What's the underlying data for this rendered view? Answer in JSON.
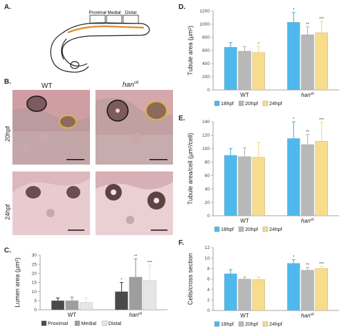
{
  "panels": {
    "A": {
      "letter": "A.",
      "segments": [
        "Proximal",
        "Medial",
        "Distal"
      ]
    },
    "B": {
      "letter": "B.",
      "col_wt": "WT",
      "col_han": "han",
      "col_han_sup": "s6",
      "row_20": "20hpf",
      "row_24": "24hpf"
    },
    "C": {
      "letter": "C."
    },
    "D": {
      "letter": "D."
    },
    "E": {
      "letter": "E."
    },
    "F": {
      "letter": "F."
    }
  },
  "chart_data": [
    {
      "id": "C",
      "type": "bar",
      "ylabel": "Lumen area (μm²)",
      "ylim": [
        0,
        30
      ],
      "yticks": [
        0,
        5,
        10,
        15,
        20,
        25,
        30
      ],
      "groups": [
        "WT",
        "han"
      ],
      "group_sup": [
        "",
        "s6"
      ],
      "legend_position": "bottom",
      "series": [
        {
          "name": "Proximal",
          "color": "#4a4a4a",
          "values": [
            5.0,
            10.0
          ],
          "errors": [
            1.5,
            5.0
          ],
          "marks": [
            "",
            "*"
          ]
        },
        {
          "name": "Medial",
          "color": "#9e9e9e",
          "values": [
            5.0,
            18.0
          ],
          "errors": [
            2.0,
            10.0
          ],
          "marks": [
            "",
            "**"
          ]
        },
        {
          "name": "Distal",
          "color": "#e6e6e6",
          "values": [
            4.0,
            16.0
          ],
          "errors": [
            2.5,
            8.5
          ],
          "marks": [
            "",
            "***"
          ]
        }
      ]
    },
    {
      "id": "D",
      "type": "bar",
      "ylabel": "Tubule area (μm²)",
      "ylim": [
        0,
        1200
      ],
      "yticks": [
        0,
        200,
        400,
        600,
        800,
        1000,
        1200
      ],
      "groups": [
        "WT",
        "han"
      ],
      "group_sup": [
        "",
        "s6"
      ],
      "legend_position": "bottom",
      "series": [
        {
          "name": "18hpf",
          "color": "#4fb8ec",
          "values": [
            650,
            1030
          ],
          "errors": [
            70,
            150
          ],
          "marks": [
            "",
            "*"
          ]
        },
        {
          "name": "20hpf",
          "color": "#b8b8b8",
          "values": [
            590,
            840
          ],
          "errors": [
            70,
            120
          ],
          "marks": [
            "",
            "**"
          ]
        },
        {
          "name": "24hpf",
          "color": "#f7dc8c",
          "values": [
            570,
            870
          ],
          "errors": [
            90,
            170
          ],
          "marks": [
            "*",
            "***"
          ]
        }
      ]
    },
    {
      "id": "E",
      "type": "bar",
      "ylabel": "Tubule area/cell (μm²/cell)",
      "ylim": [
        0,
        140
      ],
      "yticks": [
        0,
        20,
        40,
        60,
        80,
        100,
        120,
        140
      ],
      "groups": [
        "WT",
        "han"
      ],
      "group_sup": [
        "",
        "s6"
      ],
      "legend_position": "bottom",
      "series": [
        {
          "name": "18hpf",
          "color": "#4fb8ec",
          "values": [
            90,
            115
          ],
          "errors": [
            10,
            25
          ],
          "marks": [
            "",
            "*"
          ]
        },
        {
          "name": "20hpf",
          "color": "#b8b8b8",
          "values": [
            88,
            106
          ],
          "errors": [
            13,
            15
          ],
          "marks": [
            "",
            "**"
          ]
        },
        {
          "name": "24hpf",
          "color": "#f7dc8c",
          "values": [
            87,
            111
          ],
          "errors": [
            22,
            28
          ],
          "marks": [
            "",
            "***"
          ]
        }
      ]
    },
    {
      "id": "F",
      "type": "bar",
      "ylabel": "Cells/cross section",
      "ylim": [
        0,
        12
      ],
      "yticks": [
        0,
        2,
        4,
        6,
        8,
        10,
        12
      ],
      "groups": [
        "WT",
        "han"
      ],
      "group_sup": [
        "",
        "s6"
      ],
      "legend_position": "bottom",
      "series": [
        {
          "name": "18hpf",
          "color": "#4fb8ec",
          "values": [
            7.0,
            9.0
          ],
          "errors": [
            0.8,
            0.7
          ],
          "marks": [
            "",
            "*"
          ]
        },
        {
          "name": "20hpf",
          "color": "#b8b8b8",
          "values": [
            6.0,
            7.7
          ],
          "errors": [
            0.4,
            0.5
          ],
          "marks": [
            "",
            "**"
          ]
        },
        {
          "name": "24hpf",
          "color": "#f7dc8c",
          "values": [
            5.9,
            8.0
          ],
          "errors": [
            0.5,
            0.4
          ],
          "marks": [
            "",
            "***"
          ]
        }
      ]
    }
  ]
}
